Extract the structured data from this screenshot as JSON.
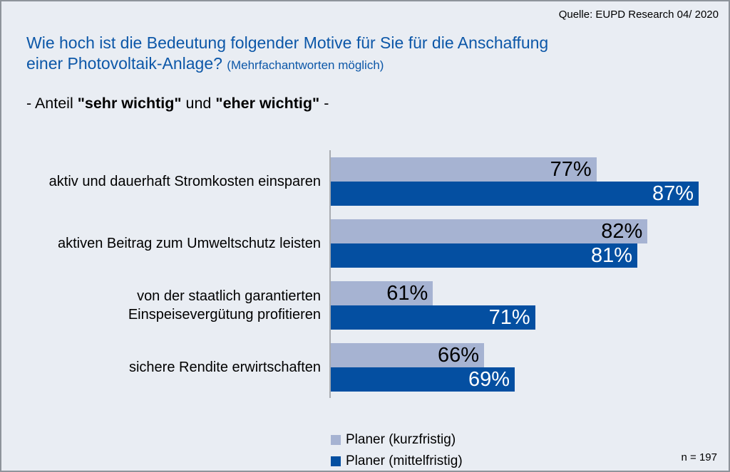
{
  "header": {
    "source": "Quelle: EUPD Research 04/ 2020",
    "title": "Wie hoch ist die Bedeutung folgender Motive für Sie für die Anschaffung einer Photovoltaik-Anlage?",
    "title_note": "(Mehrfachantworten möglich)"
  },
  "subtitle": {
    "prefix": "- Anteil ",
    "bold1": "\"sehr wichtig\"",
    "middle": " und ",
    "bold2": "\"eher wichtig\"",
    "suffix": " -"
  },
  "chart_data": {
    "type": "bar",
    "orientation": "horizontal",
    "title": "Wie hoch ist die Bedeutung folgender Motive für Sie für die Anschaffung einer Photovoltaik-Anlage? (Mehrfachantworten möglich)",
    "subtitle": "- Anteil \"sehr wichtig\" und \"eher wichtig\" -",
    "categories": [
      "aktiv und dauerhaft Stromkosten einsparen",
      "aktiven Beitrag zum Umweltschutz leisten",
      "von der staatlich garantierten\nEinspeisevergütung profitieren",
      "sichere Rendite erwirtschaften"
    ],
    "series": [
      {
        "name": "Planer (kurzfristig)",
        "color": "#a6b3d2",
        "label_color": "#000000",
        "values": [
          77,
          82,
          61,
          66
        ]
      },
      {
        "name": "Planer (mittelfristig)",
        "color": "#044fa1",
        "label_color": "#ffffff",
        "values": [
          87,
          81,
          71,
          69
        ]
      }
    ],
    "value_suffix": "%",
    "xlim": [
      51,
      87
    ],
    "grid": false,
    "legend_position": "bottom"
  },
  "footer": {
    "n_label": "n = 197"
  },
  "colors": {
    "background": "#e9edf3",
    "title": "#0c57a8",
    "axis_line": "#a9acb1",
    "border": "#8e949b"
  }
}
